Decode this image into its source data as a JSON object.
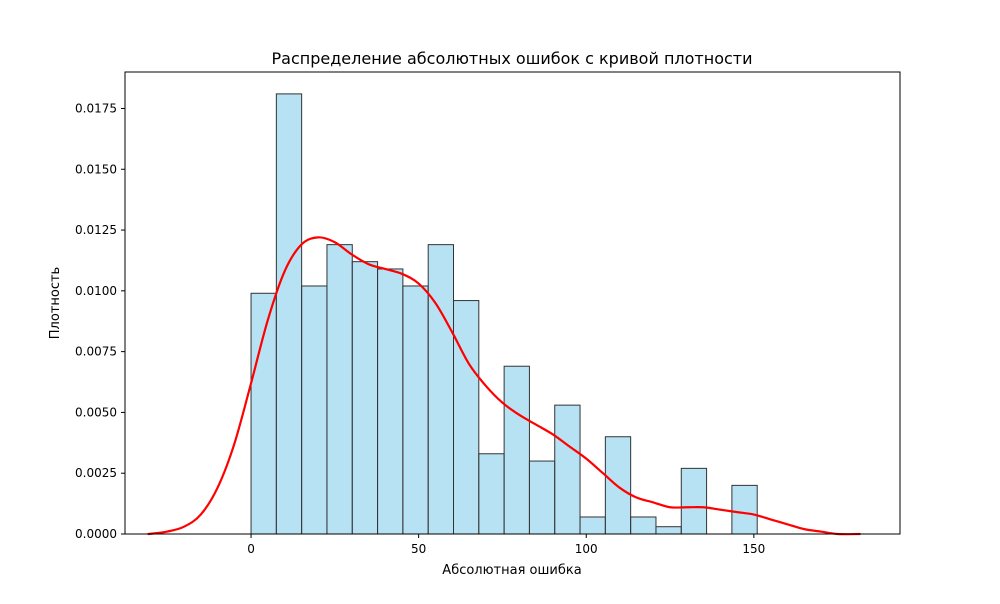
{
  "chart_data": {
    "type": "bar",
    "title": "Распределение абсолютных ошибок с кривой плотности",
    "xlabel": "Абсолютная ошибка",
    "ylabel": "Плотность",
    "xlim": [
      -37.6,
      193.6
    ],
    "ylim": [
      0,
      0.019
    ],
    "x_ticks": [
      0,
      50,
      100,
      150
    ],
    "x_tick_labels": [
      "0",
      "50",
      "100",
      "150"
    ],
    "y_ticks": [
      0,
      0.0025,
      0.005,
      0.0075,
      0.01,
      0.0125,
      0.015,
      0.0175
    ],
    "y_tick_labels": [
      "0.0000",
      "0.0025",
      "0.0050",
      "0.0075",
      "0.0100",
      "0.0125",
      "0.0150",
      "0.0175"
    ],
    "grid": false,
    "colors": {
      "bar_fill": "#87ceeb",
      "bar_fill_opacity": 0.6,
      "bar_edge": "#333333",
      "curve": "#ff0000",
      "axes": "#000000"
    },
    "histogram": {
      "bin_edges": [
        0,
        7.55,
        15.1,
        22.65,
        30.2,
        37.75,
        45.3,
        52.85,
        60.4,
        67.95,
        75.5,
        83.05,
        90.6,
        98.15,
        105.7,
        113.25,
        120.8,
        128.35,
        135.9,
        143.45,
        151.0
      ],
      "densities": [
        0.0099,
        0.0181,
        0.0102,
        0.0119,
        0.0112,
        0.0109,
        0.0102,
        0.0119,
        0.0096,
        0.0033,
        0.0069,
        0.003,
        0.0053,
        0.0007,
        0.004,
        0.0007,
        0.0003,
        0.0027,
        0.0,
        0.002
      ]
    },
    "density_curve": {
      "x": [
        -30.6,
        -25,
        -20,
        -15,
        -10,
        -5,
        0,
        5,
        10,
        15,
        20,
        25,
        30,
        35,
        40,
        45,
        50,
        55,
        60,
        65,
        70,
        75,
        80,
        85,
        90,
        95,
        100,
        105,
        110,
        115,
        120,
        125,
        130,
        135,
        140,
        145,
        150,
        155,
        160,
        165,
        170,
        175,
        181.6
      ],
      "y": [
        0.0,
        0.0001,
        0.0003,
        0.0008,
        0.0019,
        0.0037,
        0.0062,
        0.0088,
        0.0108,
        0.0119,
        0.0122,
        0.012,
        0.0115,
        0.0111,
        0.0109,
        0.0107,
        0.0103,
        0.0095,
        0.0083,
        0.007,
        0.0061,
        0.0054,
        0.0049,
        0.0045,
        0.0041,
        0.0036,
        0.0031,
        0.0025,
        0.0019,
        0.0015,
        0.0013,
        0.0011,
        0.0011,
        0.0011,
        0.001,
        0.0009,
        0.0008,
        0.0006,
        0.0004,
        0.0002,
        0.0001,
        0.0,
        0.0
      ]
    }
  }
}
